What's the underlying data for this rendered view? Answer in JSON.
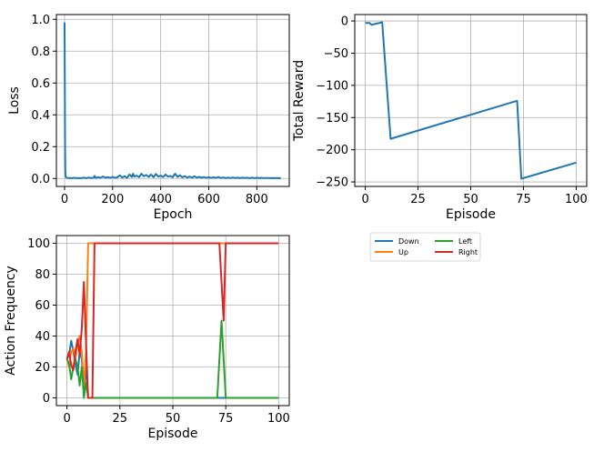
{
  "chart_data": [
    {
      "id": "loss",
      "type": "line",
      "title": "",
      "xlabel": "Epoch",
      "ylabel": "Loss",
      "xlim": [
        -34,
        935
      ],
      "ylim": [
        -0.05,
        1.03
      ],
      "xticks": [
        0,
        200,
        400,
        600,
        800
      ],
      "yticks": [
        0.0,
        0.2,
        0.4,
        0.6,
        0.8,
        1.0
      ],
      "ytick_decimals": 1,
      "grid": true,
      "series": [
        {
          "color": "#1f77b4",
          "x": [
            0,
            1,
            2,
            3,
            4,
            5,
            6,
            8,
            10,
            15,
            20,
            30,
            40,
            50,
            60,
            70,
            80,
            90,
            100,
            110,
            120,
            125,
            130,
            140,
            150,
            160,
            170,
            180,
            190,
            200,
            210,
            220,
            230,
            240,
            250,
            260,
            270,
            280,
            285,
            290,
            300,
            310,
            320,
            330,
            340,
            350,
            360,
            370,
            380,
            390,
            400,
            410,
            420,
            430,
            440,
            450,
            460,
            470,
            480,
            490,
            500,
            510,
            520,
            530,
            540,
            550,
            560,
            570,
            580,
            590,
            600,
            610,
            620,
            630,
            640,
            650,
            660,
            670,
            680,
            690,
            700,
            710,
            720,
            730,
            740,
            750,
            760,
            770,
            780,
            790,
            800,
            810,
            820,
            830,
            840,
            850,
            860,
            870,
            880,
            890,
            900
          ],
          "y": [
            0.98,
            0.6,
            0.2,
            0.05,
            0.02,
            0.012,
            0.008,
            0.006,
            0.004,
            0.003,
            0.003,
            0.002,
            0.004,
            0.002,
            0.003,
            0.002,
            0.005,
            0.002,
            0.006,
            0.003,
            0.004,
            0.016,
            0.003,
            0.008,
            0.004,
            0.012,
            0.005,
            0.008,
            0.004,
            0.01,
            0.004,
            0.008,
            0.02,
            0.006,
            0.014,
            0.004,
            0.025,
            0.01,
            0.03,
            0.012,
            0.018,
            0.008,
            0.03,
            0.014,
            0.022,
            0.01,
            0.025,
            0.008,
            0.028,
            0.012,
            0.018,
            0.009,
            0.025,
            0.012,
            0.016,
            0.008,
            0.03,
            0.01,
            0.02,
            0.007,
            0.015,
            0.006,
            0.012,
            0.005,
            0.014,
            0.006,
            0.01,
            0.005,
            0.009,
            0.004,
            0.008,
            0.004,
            0.007,
            0.004,
            0.009,
            0.003,
            0.006,
            0.003,
            0.005,
            0.003,
            0.006,
            0.003,
            0.005,
            0.002,
            0.005,
            0.003,
            0.004,
            0.002,
            0.005,
            0.002,
            0.004,
            0.002,
            0.004,
            0.002,
            0.003,
            0.003,
            0.002,
            0.003,
            0.002,
            0.003,
            0.002
          ]
        }
      ]
    },
    {
      "id": "reward",
      "type": "line",
      "title": "",
      "xlabel": "Episode",
      "ylabel": "Total Reward",
      "xlim": [
        -5,
        105
      ],
      "ylim": [
        -257,
        10
      ],
      "xticks": [
        0,
        25,
        50,
        75,
        100
      ],
      "yticks": [
        0,
        -50,
        -100,
        -150,
        -200,
        -250
      ],
      "ytick_decimals": 0,
      "grid": true,
      "series": [
        {
          "color": "#1f77b4",
          "x": [
            0,
            2,
            3,
            4,
            8,
            12,
            72,
            74,
            100
          ],
          "y": [
            -3,
            -3,
            -6,
            -5,
            -2,
            -183,
            -124,
            -245,
            -220
          ]
        }
      ]
    },
    {
      "id": "actions",
      "type": "line",
      "title": "",
      "xlabel": "Episode",
      "ylabel": "Action Frequency",
      "xlim": [
        -5,
        105
      ],
      "ylim": [
        -5,
        105
      ],
      "xticks": [
        0,
        25,
        50,
        75,
        100
      ],
      "yticks": [
        0,
        20,
        40,
        60,
        80,
        100
      ],
      "ytick_decimals": 0,
      "grid": true,
      "legend": "outside-right",
      "series": [
        {
          "name": "Down",
          "color": "#1f77b4",
          "x": [
            0,
            1,
            2,
            3,
            4,
            5,
            6,
            7,
            8,
            9,
            10,
            11,
            12,
            13,
            100
          ],
          "y": [
            25,
            28,
            37,
            30,
            22,
            15,
            30,
            25,
            5,
            20,
            0,
            0,
            0,
            0,
            0
          ]
        },
        {
          "name": "Up",
          "color": "#ff7f0e",
          "x": [
            0,
            1,
            2,
            3,
            4,
            5,
            6,
            7,
            8,
            9,
            10,
            11,
            100
          ],
          "y": [
            25,
            20,
            30,
            32,
            25,
            35,
            40,
            30,
            8,
            30,
            100,
            100,
            100
          ]
        },
        {
          "name": "Left",
          "color": "#2ca02c",
          "x": [
            0,
            1,
            2,
            3,
            4,
            5,
            6,
            7,
            8,
            9,
            10,
            11,
            12,
            13,
            71,
            73,
            75,
            100
          ],
          "y": [
            25,
            22,
            12,
            20,
            25,
            20,
            8,
            20,
            0,
            10,
            0,
            0,
            0,
            0,
            0,
            50,
            0,
            0
          ]
        },
        {
          "name": "Right",
          "color": "#d62728",
          "x": [
            0,
            1,
            2,
            3,
            4,
            5,
            6,
            7,
            8,
            9,
            10,
            11,
            12,
            13,
            14,
            72,
            73,
            74,
            75,
            100
          ],
          "y": [
            25,
            30,
            21,
            18,
            30,
            38,
            28,
            45,
            75,
            35,
            0,
            0,
            0,
            100,
            100,
            100,
            75,
            50,
            100,
            100
          ]
        }
      ]
    }
  ]
}
